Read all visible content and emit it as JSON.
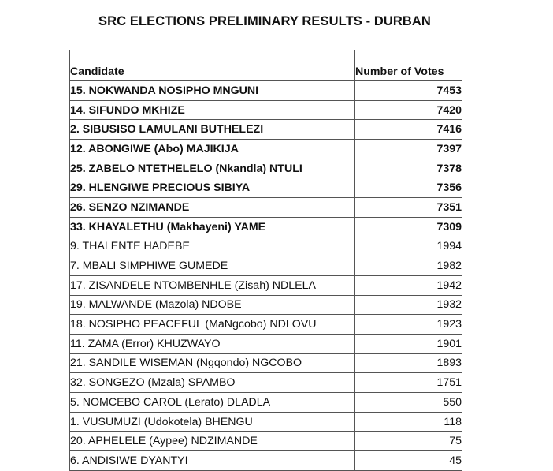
{
  "title": "SRC ELECTIONS PRELIMINARY RESULTS - DURBAN",
  "table": {
    "headers": {
      "candidate": "Candidate",
      "votes": "Number of Votes"
    },
    "rows": [
      {
        "candidate": "15. NOKWANDA NOSIPHO MNGUNI",
        "votes": "7453",
        "bold": true
      },
      {
        "candidate": "14. SIFUNDO MKHIZE",
        "votes": "7420",
        "bold": true
      },
      {
        "candidate": "2. SIBUSISO LAMULANI BUTHELEZI",
        "votes": "7416",
        "bold": true
      },
      {
        "candidate": "12. ABONGIWE (Abo) MAJIKIJA",
        "votes": "7397",
        "bold": true
      },
      {
        "candidate": "25. ZABELO NTETHELELO (Nkandla) NTULI",
        "votes": "7378",
        "bold": true
      },
      {
        "candidate": "29. HLENGIWE PRECIOUS SIBIYA",
        "votes": "7356",
        "bold": true
      },
      {
        "candidate": "26. SENZO NZIMANDE",
        "votes": "7351",
        "bold": true
      },
      {
        "candidate": "33. KHAYALETHU (Makhayeni) YAME",
        "votes": "7309",
        "bold": true
      },
      {
        "candidate": "9. THALENTE HADEBE",
        "votes": "1994",
        "bold": false
      },
      {
        "candidate": "7. MBALI SIMPHIWE GUMEDE",
        "votes": "1982",
        "bold": false
      },
      {
        "candidate": "17. ZISANDELE NTOMBENHLE (Zisah) NDLELA",
        "votes": "1942",
        "bold": false
      },
      {
        "candidate": "19. MALWANDE (Mazola) NDOBE",
        "votes": "1932",
        "bold": false
      },
      {
        "candidate": "18. NOSIPHO PEACEFUL (MaNgcobo) NDLOVU",
        "votes": "1923",
        "bold": false
      },
      {
        "candidate": "11. ZAMA (Error) KHUZWAYO",
        "votes": "1901",
        "bold": false
      },
      {
        "candidate": "21. SANDILE WISEMAN (Ngqondo) NGCOBO",
        "votes": "1893",
        "bold": false
      },
      {
        "candidate": "32. SONGEZO (Mzala) SPAMBO",
        "votes": "1751",
        "bold": false
      },
      {
        "candidate": "5. NOMCEBO CAROL (Lerato) DLADLA",
        "votes": "550",
        "bold": false
      },
      {
        "candidate": "1. VUSUMUZI (Udokotela) BHENGU",
        "votes": "118",
        "bold": false
      },
      {
        "candidate": "20. APHELELE (Aypee) NDZIMANDE",
        "votes": "75",
        "bold": false
      },
      {
        "candidate": "6. ANDISIWE DYANTYI",
        "votes": "45",
        "bold": false
      }
    ]
  }
}
